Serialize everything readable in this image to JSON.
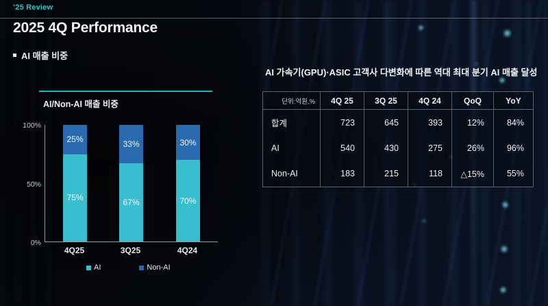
{
  "page": {
    "eyebrow": "’25 Review",
    "title": "2025 4Q Performance",
    "section_label": "AI 매출 비중",
    "headline": "AI 가속기(GPU)·ASIC 고객사 다변화에 따른 역대 최대 분기 AI 매출 달성"
  },
  "colors": {
    "accent_teal": "#2dc7c5",
    "ai_cyan": "#39becf",
    "non_ai_blue": "#2a6baf"
  },
  "chart_data": [
    {
      "type": "bar",
      "stacked": true,
      "title": "AI/Non-AI 매출 비중",
      "categories": [
        "4Q25",
        "3Q25",
        "4Q24"
      ],
      "series": [
        {
          "name": "AI",
          "color": "#39becf",
          "values": [
            75,
            67,
            70
          ]
        },
        {
          "name": "Non-AI",
          "color": "#2a6baf",
          "values": [
            25,
            33,
            30
          ]
        }
      ],
      "value_suffix": "%",
      "ylim": [
        0,
        100
      ],
      "y_ticks": [
        "100%",
        "50%",
        "0%"
      ],
      "grid": false,
      "legend_position": "bottom"
    },
    {
      "type": "table",
      "unit_label": "단위:억원,%",
      "columns": [
        "4Q 25",
        "3Q 25",
        "4Q 24",
        "QoQ",
        "YoY"
      ],
      "rows": [
        {
          "label": "합계",
          "values": [
            "723",
            "645",
            "393",
            "12%",
            "84%"
          ]
        },
        {
          "label": "AI",
          "values": [
            "540",
            "430",
            "275",
            "26%",
            "96%"
          ]
        },
        {
          "label": "Non-AI",
          "values": [
            "183",
            "215",
            "118",
            "△15%",
            "55%"
          ]
        }
      ]
    }
  ]
}
